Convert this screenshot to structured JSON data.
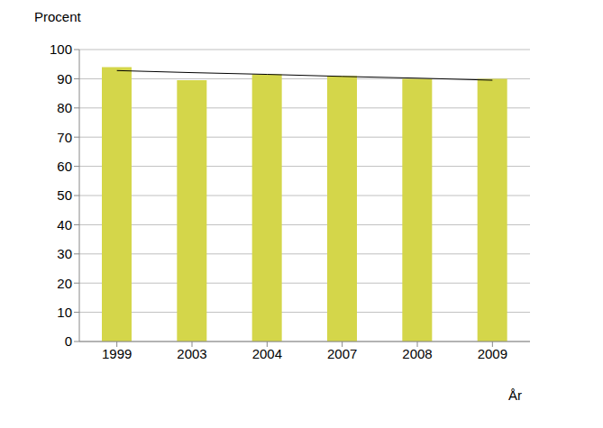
{
  "chart_data": {
    "type": "bar",
    "y_label": "Procent",
    "x_label": "År",
    "categories": [
      "1999",
      "2003",
      "2004",
      "2007",
      "2008",
      "2009"
    ],
    "series": [
      {
        "type": "bar",
        "color": "#d4d64a",
        "values": [
          94,
          89.5,
          91.5,
          91,
          90,
          90
        ]
      },
      {
        "type": "line",
        "color": "#000000",
        "values": [
          92.8,
          92.1,
          91.5,
          90.8,
          90.2,
          89.5
        ]
      }
    ],
    "ylim": [
      0,
      100
    ],
    "yticks": [
      0,
      10,
      20,
      30,
      40,
      50,
      60,
      70,
      80,
      90,
      100
    ],
    "grid": true
  }
}
